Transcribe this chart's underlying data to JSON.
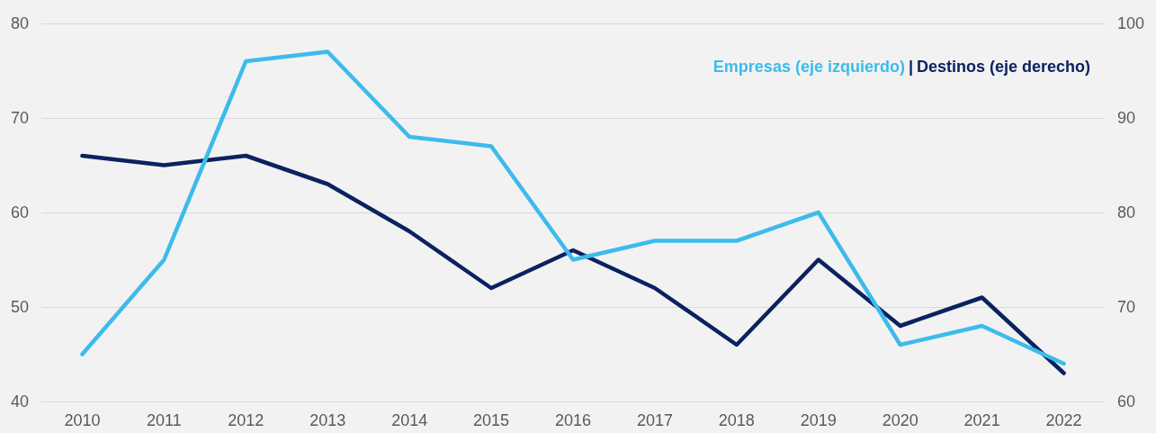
{
  "chart_data": {
    "type": "line",
    "categories": [
      "2010",
      "2011",
      "2012",
      "2013",
      "2014",
      "2015",
      "2016",
      "2017",
      "2018",
      "2019",
      "2020",
      "2021",
      "2022"
    ],
    "series": [
      {
        "name": "Empresas (eje izquierdo)",
        "color": "#3dbbeb",
        "values": [
          45,
          55,
          76,
          77,
          68,
          67,
          55,
          57,
          57,
          60,
          46,
          48,
          44
        ]
      },
      {
        "name": "Destinos (eje derecho)",
        "color": "#0b2260",
        "axis": "y2",
        "values": [
          86,
          85,
          86,
          83,
          78,
          72,
          76,
          72,
          66,
          75,
          68,
          71,
          63
        ]
      }
    ],
    "ylim": [
      40,
      80
    ],
    "yticks": [
      40,
      50,
      60,
      70,
      80
    ],
    "y2lim": [
      60,
      100
    ],
    "y2ticks": [
      60,
      70,
      80,
      90,
      100
    ],
    "grid": "y",
    "legend": "top right",
    "marker": "none",
    "line_style": "solid",
    "annotations": [
      "|"
    ]
  }
}
